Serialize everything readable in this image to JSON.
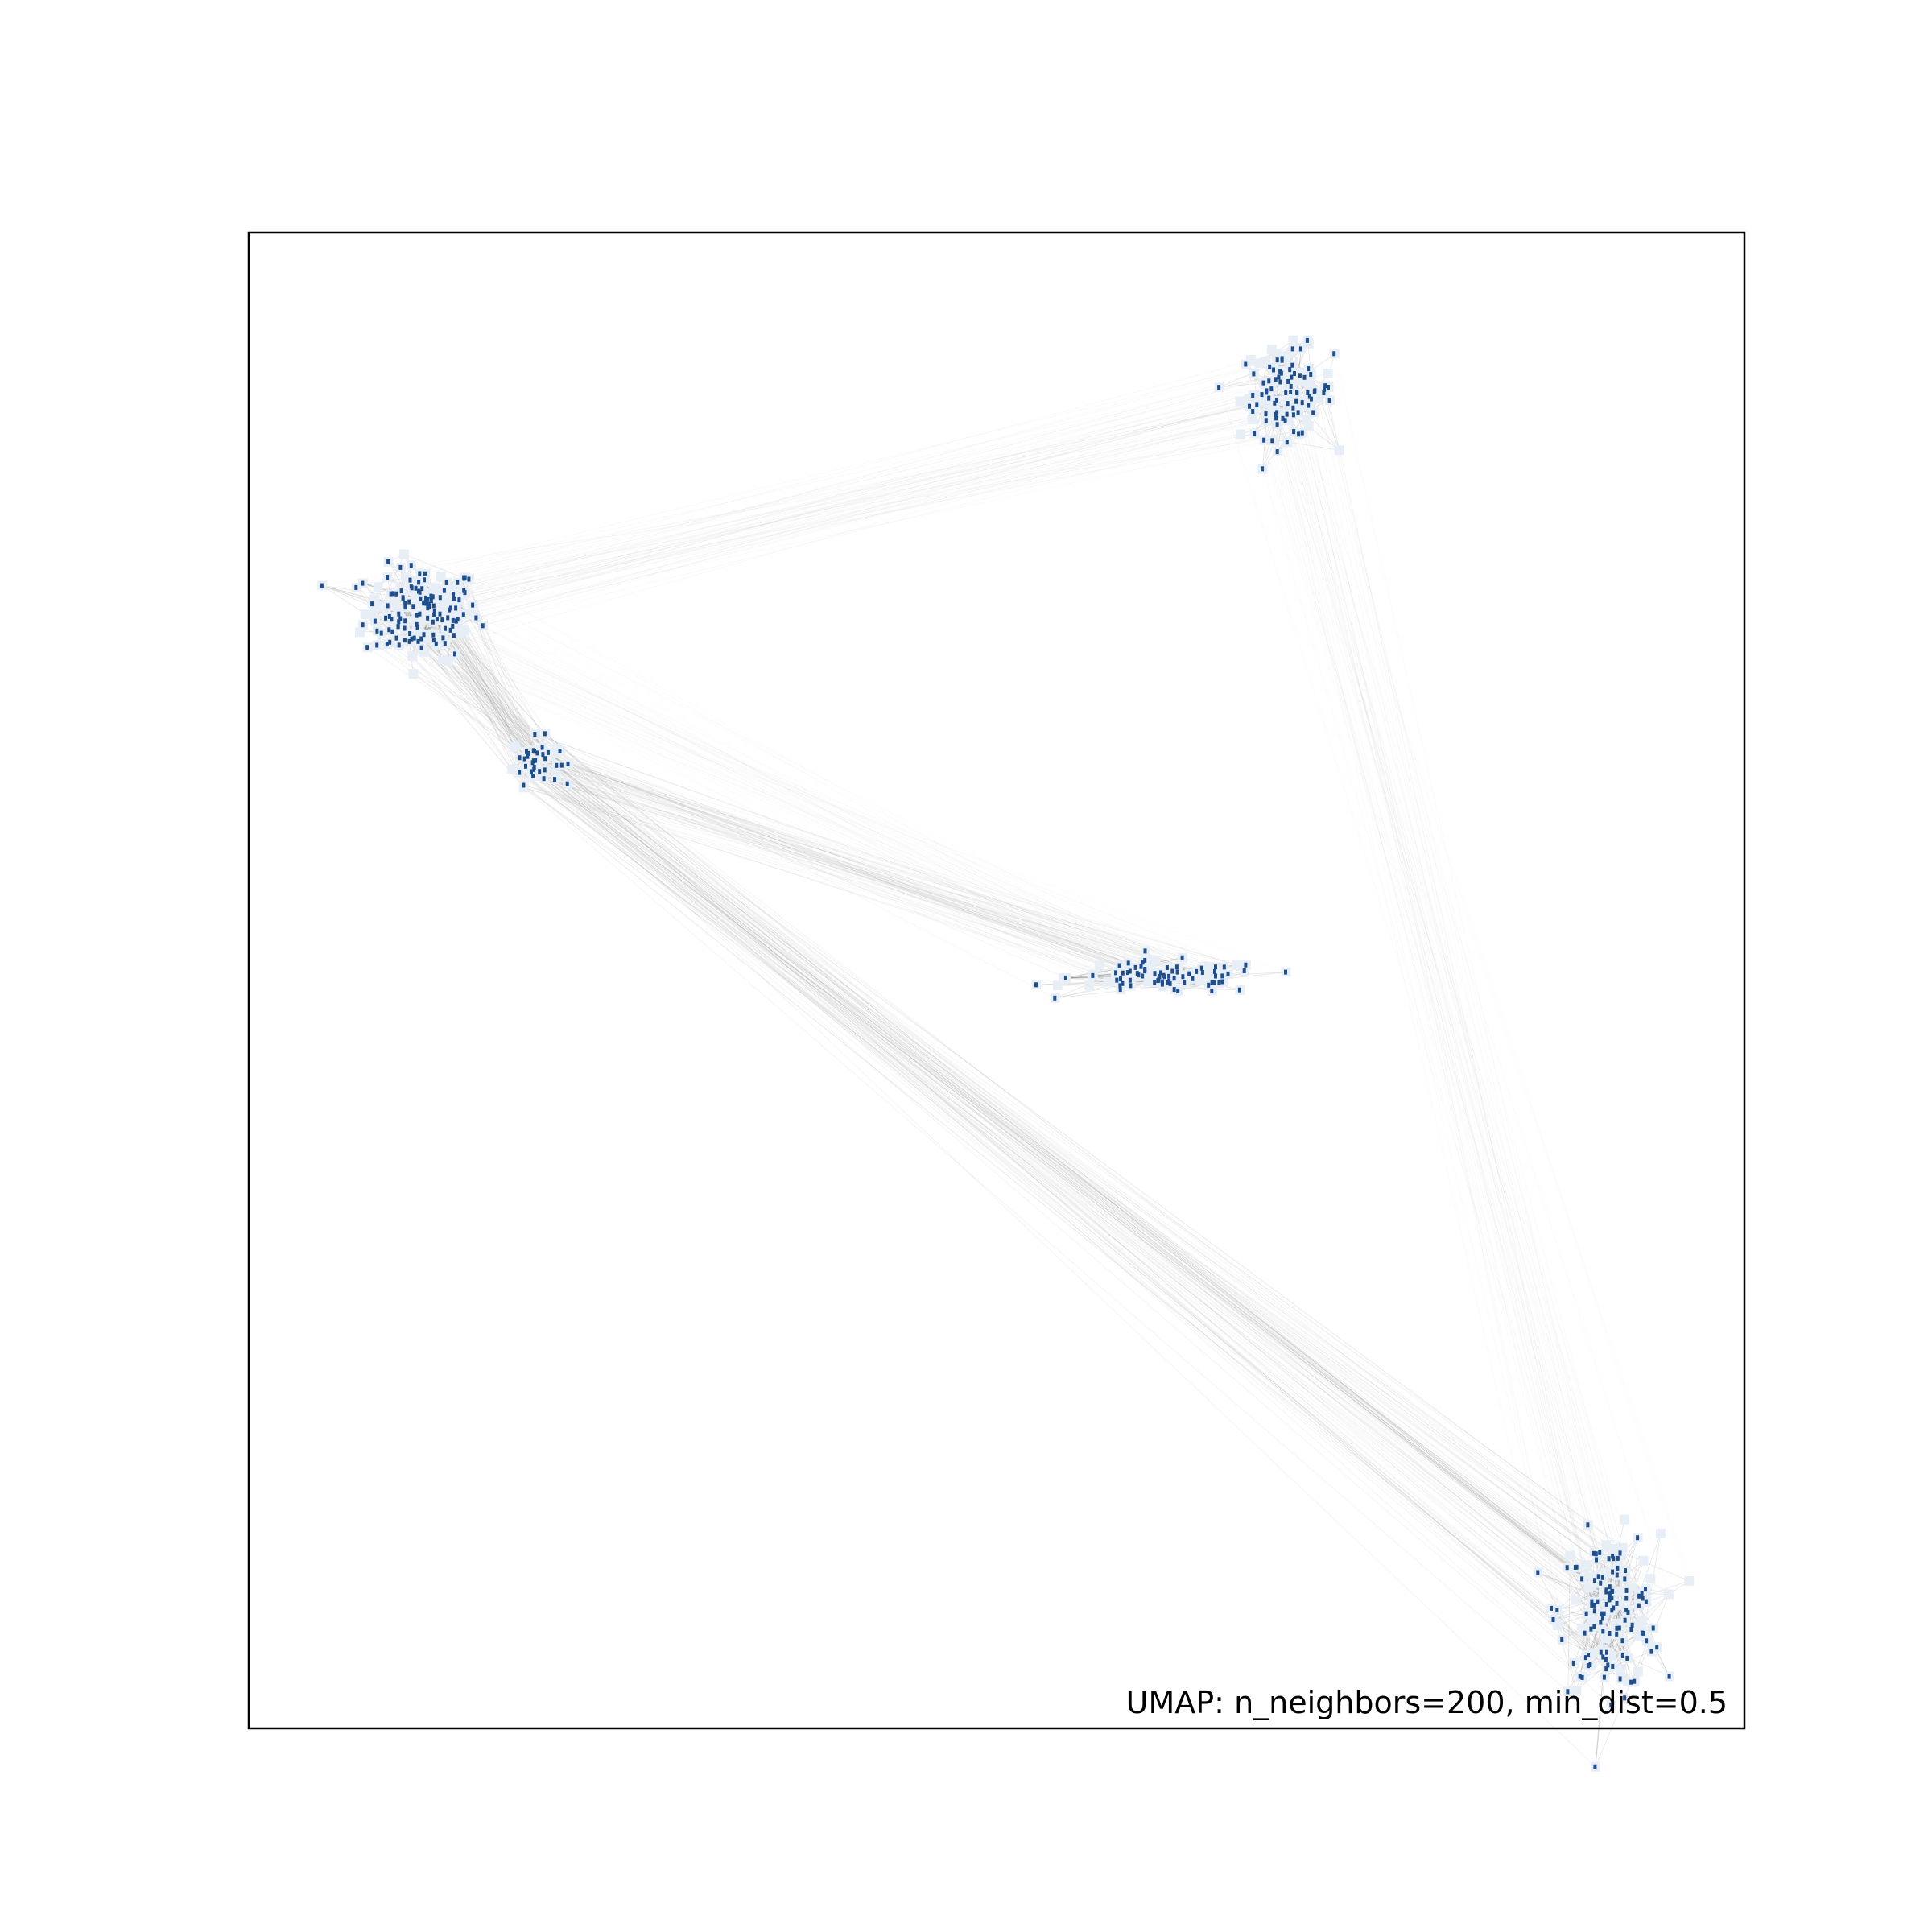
{
  "chart_data": {
    "type": "scatter",
    "title": "",
    "xlabel": "",
    "ylabel": "",
    "ticks_shown": false,
    "grid": false,
    "legend": "none",
    "annotation": "UMAP: n_neighbors=200, min_dist=0.5",
    "annotation_position": "bottom-right",
    "colors": {
      "point": "#1f4e8c",
      "point_halo": "#e8eef6",
      "edge": "#9a9a9a",
      "axes_frame": "#000000"
    },
    "xlim": [
      0,
      10
    ],
    "ylim": [
      0,
      10
    ],
    "clusters": [
      {
        "name": "",
        "center": [
          1.16,
          7.46
        ],
        "spread": [
          0.32,
          0.26
        ],
        "n_points": 180
      },
      {
        "name": "",
        "center": [
          1.92,
          6.47
        ],
        "spread": [
          0.13,
          0.13
        ],
        "n_points": 50
      },
      {
        "name": "",
        "center": [
          6.94,
          8.93
        ],
        "spread": [
          0.26,
          0.25
        ],
        "n_points": 120
      },
      {
        "name": "",
        "center": [
          6.14,
          5.02
        ],
        "spread": [
          0.55,
          0.09
        ],
        "n_points": 110
      },
      {
        "name": "",
        "center": [
          9.1,
          0.78
        ],
        "spread": [
          0.28,
          0.43
        ],
        "n_points": 160
      }
    ],
    "edges": [
      {
        "from": 0,
        "to": 1,
        "strength": 0.9
      },
      {
        "from": 0,
        "to": 2,
        "strength": 0.25
      },
      {
        "from": 1,
        "to": 3,
        "strength": 0.45
      },
      {
        "from": 1,
        "to": 4,
        "strength": 0.7
      },
      {
        "from": 2,
        "to": 4,
        "strength": 0.2
      },
      {
        "from": 0,
        "to": 3,
        "strength": 0.1
      }
    ]
  }
}
